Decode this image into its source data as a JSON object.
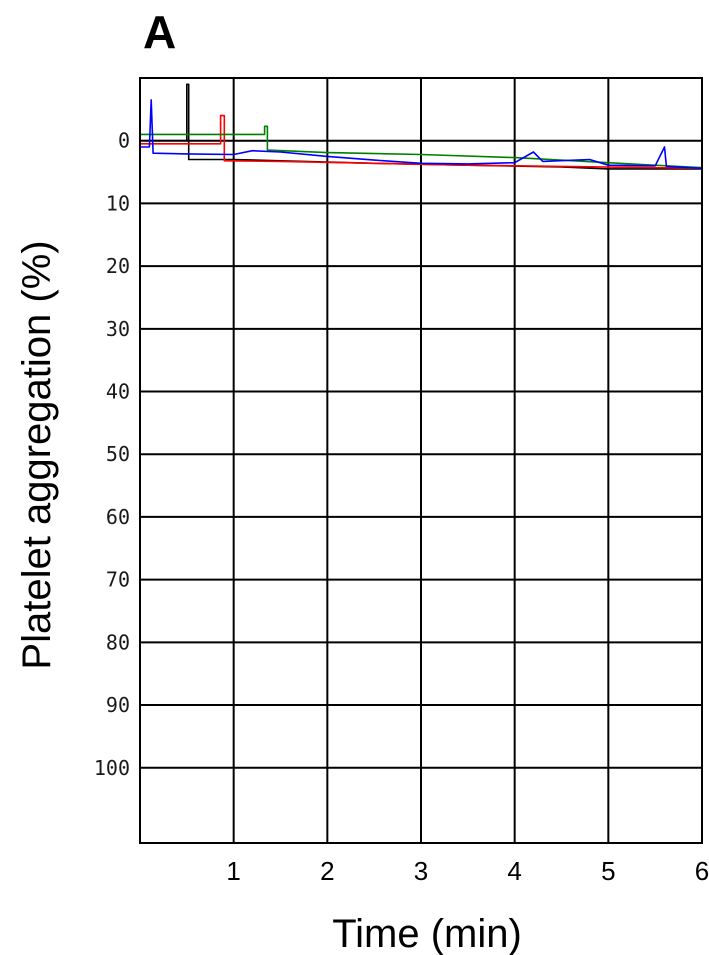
{
  "panel_label": "A",
  "chart_data": {
    "type": "line",
    "title": "",
    "xlabel": "Time (min)",
    "ylabel": "Platelet aggregation (%)",
    "xlim": [
      0,
      6
    ],
    "ylim": [
      -10,
      112
    ],
    "y_inverted": true,
    "grid": true,
    "x_ticks": [
      1,
      2,
      3,
      4,
      5,
      6
    ],
    "x_tick_labels": [
      "1",
      "2",
      "3",
      "4",
      "5",
      "6"
    ],
    "y_ticks": [
      0,
      10,
      20,
      30,
      40,
      50,
      60,
      70,
      80,
      90,
      100
    ],
    "y_tick_labels": [
      "0",
      "10",
      "20",
      "30",
      "40",
      "50",
      "60",
      "70",
      "80",
      "90",
      "100"
    ],
    "series": [
      {
        "color": "#000000",
        "points": [
          [
            0.0,
            0.0
          ],
          [
            0.5,
            0.0
          ],
          [
            0.5,
            -9.0
          ],
          [
            0.52,
            -9.0
          ],
          [
            0.52,
            3.0
          ],
          [
            1.0,
            3.0
          ],
          [
            1.5,
            3.2
          ],
          [
            2.5,
            3.6
          ],
          [
            3.5,
            3.9
          ],
          [
            4.5,
            4.2
          ],
          [
            5.0,
            4.5
          ],
          [
            6.0,
            4.5
          ]
        ]
      },
      {
        "color": "#ff0000",
        "points": [
          [
            0.0,
            0.5
          ],
          [
            0.86,
            0.5
          ],
          [
            0.86,
            -4.0
          ],
          [
            0.9,
            -4.0
          ],
          [
            0.9,
            3.2
          ],
          [
            1.5,
            3.3
          ],
          [
            2.5,
            3.6
          ],
          [
            3.5,
            3.9
          ],
          [
            4.5,
            4.1
          ],
          [
            5.5,
            4.3
          ],
          [
            6.0,
            4.4
          ]
        ]
      },
      {
        "color": "#008000",
        "points": [
          [
            0.0,
            -1.0
          ],
          [
            1.33,
            -1.0
          ],
          [
            1.33,
            -2.3
          ],
          [
            1.36,
            -2.3
          ],
          [
            1.36,
            1.5
          ],
          [
            2.0,
            1.9
          ],
          [
            3.0,
            2.2
          ],
          [
            4.0,
            2.7
          ],
          [
            5.0,
            3.5
          ],
          [
            6.0,
            4.3
          ]
        ]
      },
      {
        "color": "#0000ff",
        "points": [
          [
            0.0,
            1.0
          ],
          [
            0.1,
            1.0
          ],
          [
            0.12,
            -6.5
          ],
          [
            0.14,
            2.0
          ],
          [
            0.5,
            2.1
          ],
          [
            1.0,
            2.2
          ],
          [
            1.2,
            1.6
          ],
          [
            1.5,
            1.8
          ],
          [
            2.0,
            2.5
          ],
          [
            2.5,
            3.1
          ],
          [
            3.0,
            3.6
          ],
          [
            3.5,
            3.7
          ],
          [
            4.0,
            3.5
          ],
          [
            4.2,
            1.8
          ],
          [
            4.3,
            3.3
          ],
          [
            4.8,
            3.0
          ],
          [
            5.0,
            3.9
          ],
          [
            5.5,
            4.0
          ],
          [
            5.6,
            1.0
          ],
          [
            5.62,
            4.1
          ],
          [
            6.0,
            4.4
          ]
        ]
      }
    ]
  }
}
